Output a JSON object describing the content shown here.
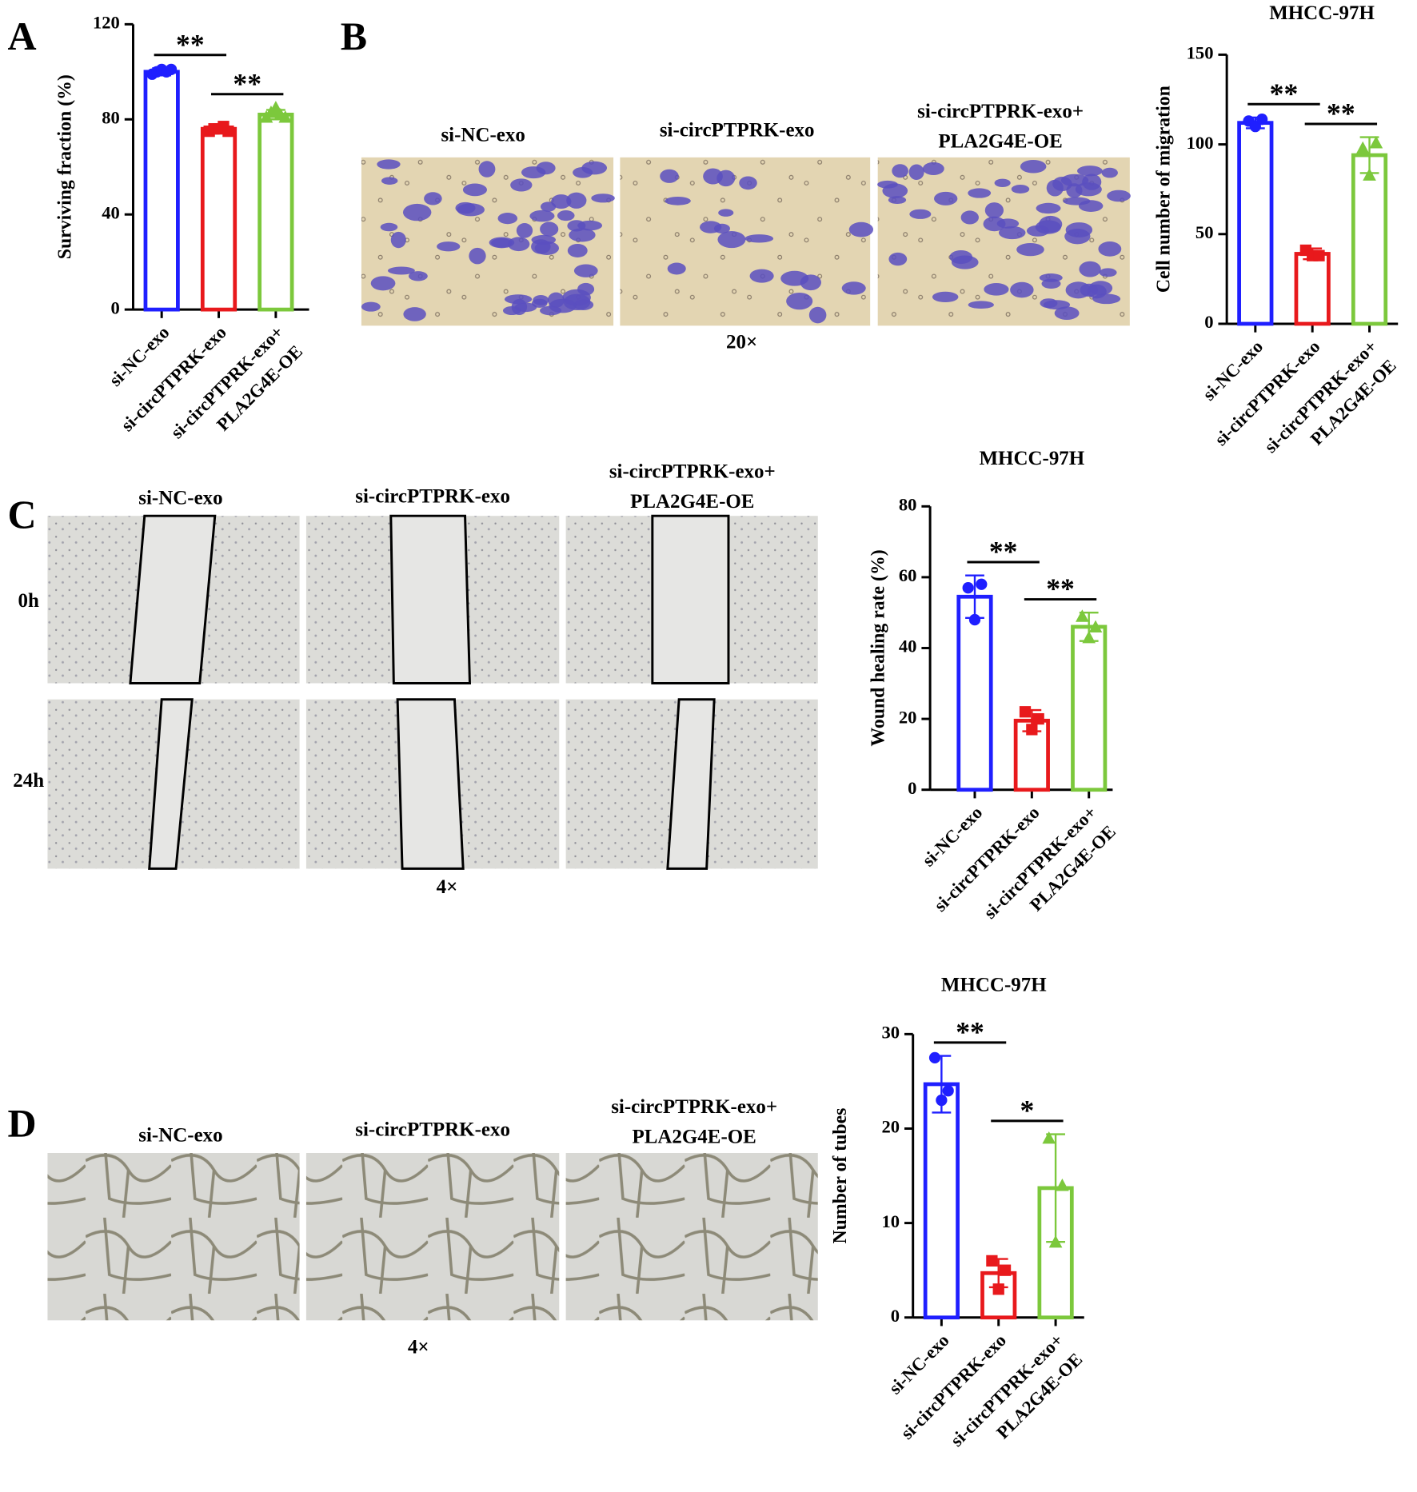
{
  "figure": {
    "panel_labels": [
      "A",
      "B",
      "C",
      "D"
    ],
    "image_groups": [
      {
        "headers": [
          "si-NC-exo",
          "si-circPTPRK-exo",
          "si-circPTPRK-exo+\nPLA2G4E-OE"
        ],
        "magnification": "20×"
      },
      {
        "headers": [
          "si-NC-exo",
          "si-circPTPRK-exo",
          "si-circPTPRK-exo+\nPLA2G4E-OE"
        ],
        "rows": [
          "0h",
          "24h"
        ],
        "magnification": "4×"
      },
      {
        "headers": [
          "si-NC-exo",
          "si-circPTPRK-exo",
          "si-circPTPRK-exo+\nPLA2G4E-OE"
        ],
        "magnification": "4×"
      }
    ]
  },
  "chart_data": [
    {
      "type": "bar",
      "ylabel": "Surviving fraction (%)",
      "categories": [
        "si-NC-exo",
        "si-circPTPRK-exo",
        "si-circPTPRK-exo+\nPLA2G4E-OE"
      ],
      "colors": [
        "#1f1fff",
        "#e8191c",
        "#7cc83c"
      ],
      "values": [
        100,
        76,
        82
      ],
      "errors": [
        1.5,
        1,
        2
      ],
      "points": [
        [
          99,
          100,
          101,
          100,
          101
        ],
        [
          75,
          76,
          76,
          77,
          75
        ],
        [
          81,
          83,
          85,
          82,
          81
        ]
      ],
      "ylim": [
        0,
        120
      ],
      "yticks": [
        0,
        40,
        80,
        120
      ],
      "significance": [
        {
          "text": "**",
          "from": 0,
          "to": 1
        },
        {
          "text": "**",
          "from": 1,
          "to": 2
        }
      ]
    },
    {
      "type": "bar",
      "title": "MHCC-97H",
      "ylabel": "Cell number of migration",
      "categories": [
        "si-NC-exo",
        "si-circPTPRK-exo",
        "si-circPTPRK-exo+\nPLA2G4E-OE"
      ],
      "colors": [
        "#1f1fff",
        "#e8191c",
        "#7cc83c"
      ],
      "values": [
        112,
        39,
        94
      ],
      "errors": [
        3,
        3,
        10
      ],
      "points": [
        [
          113,
          110,
          114
        ],
        [
          41,
          38,
          38
        ],
        [
          98,
          83,
          101
        ]
      ],
      "ylim": [
        0,
        150
      ],
      "yticks": [
        0,
        50,
        100,
        150
      ],
      "significance": [
        {
          "text": "**",
          "from": 0,
          "to": 1
        },
        {
          "text": "**",
          "from": 1,
          "to": 2
        }
      ]
    },
    {
      "type": "bar",
      "title": "MHCC-97H",
      "ylabel": "Wound healing rate (%)",
      "categories": [
        "si-NC-exo",
        "si-circPTPRK-exo",
        "si-circPTPRK-exo+\nPLA2G4E-OE"
      ],
      "colors": [
        "#1f1fff",
        "#e8191c",
        "#7cc83c"
      ],
      "values": [
        54.5,
        19.5,
        46
      ],
      "errors": [
        6,
        3,
        4
      ],
      "points": [
        [
          57,
          48,
          58
        ],
        [
          22,
          17,
          20
        ],
        [
          49,
          43,
          46
        ]
      ],
      "ylim": [
        0,
        80
      ],
      "yticks": [
        0,
        20,
        40,
        60,
        80
      ],
      "significance": [
        {
          "text": "**",
          "from": 0,
          "to": 1
        },
        {
          "text": "**",
          "from": 1,
          "to": 2
        }
      ]
    },
    {
      "type": "bar",
      "title": "MHCC-97H",
      "ylabel": "Number of tubes",
      "categories": [
        "si-NC-exo",
        "si-circPTPRK-exo",
        "si-circPTPRK-exo+\nPLA2G4E-OE"
      ],
      "colors": [
        "#1f1fff",
        "#e8191c",
        "#7cc83c"
      ],
      "values": [
        24.7,
        4.7,
        13.7
      ],
      "errors": [
        3,
        1.5,
        5.7
      ],
      "points": [
        [
          27.5,
          23,
          24
        ],
        [
          6,
          3,
          5
        ],
        [
          19,
          8,
          14
        ]
      ],
      "ylim": [
        0,
        30
      ],
      "yticks": [
        0,
        10,
        20,
        30
      ],
      "significance": [
        {
          "text": "**",
          "from": 0,
          "to": 1
        },
        {
          "text": "*",
          "from": 1,
          "to": 2
        }
      ]
    }
  ]
}
